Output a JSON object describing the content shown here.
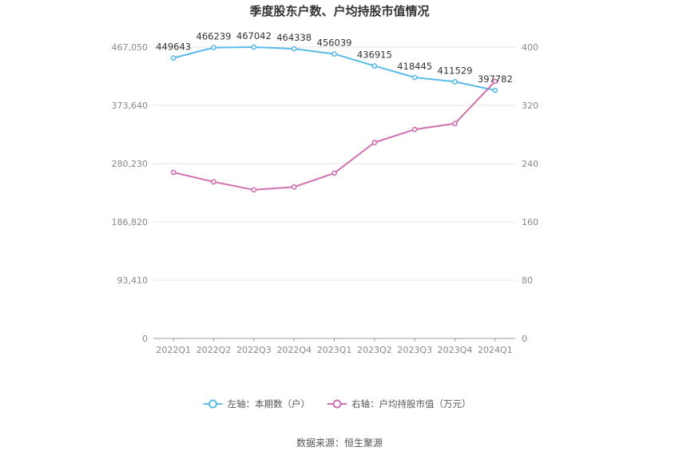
{
  "chart_data": {
    "type": "line",
    "title": "季度股东户数、户均持股市值情况",
    "categories": [
      "2022Q1",
      "2022Q2",
      "2022Q3",
      "2022Q4",
      "2023Q1",
      "2023Q2",
      "2023Q3",
      "2023Q4",
      "2024Q1"
    ],
    "series": [
      {
        "name": "左轴：本期数（户）",
        "axis": "left",
        "color": "#5bbbe8",
        "values": [
          449643,
          466239,
          467042,
          464338,
          456039,
          436915,
          418445,
          411529,
          397782
        ],
        "labels": [
          "449643",
          "466239",
          "467042",
          "464338",
          "456039",
          "436915",
          "418445",
          "411529",
          "397782"
        ]
      },
      {
        "name": "右轴：户均持股市值（万元）",
        "axis": "right",
        "color": "#d070b0",
        "values": [
          228,
          215,
          204,
          208,
          227,
          269,
          287,
          295,
          353
        ]
      }
    ],
    "left_axis": {
      "ylim": [
        0,
        467050
      ],
      "ticks": [
        0,
        93410,
        186820,
        280230,
        373640,
        467050
      ],
      "tick_labels": [
        "0",
        "93,410",
        "186,820",
        "280,230",
        "373,640",
        "467,050"
      ]
    },
    "right_axis": {
      "ylim": [
        0,
        400
      ],
      "ticks": [
        0,
        80,
        160,
        240,
        320,
        400
      ],
      "tick_labels": [
        "0",
        "80",
        "160",
        "240",
        "320",
        "400"
      ]
    },
    "grid": true,
    "legend_position": "bottom-center"
  },
  "source_text": "数据来源：恒生聚源"
}
